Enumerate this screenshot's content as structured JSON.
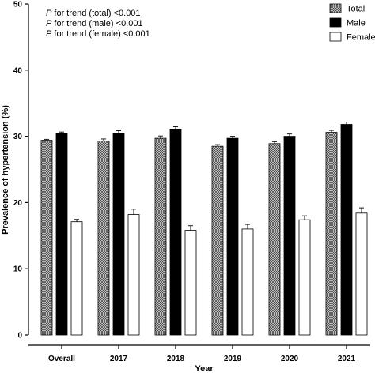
{
  "chart_data": {
    "type": "bar",
    "title": "",
    "xlabel": "Year",
    "ylabel": "Prevalence of hypertension (%)",
    "ylim": [
      0,
      50
    ],
    "yticks": [
      "0",
      "10",
      "20",
      "30",
      "40",
      "50"
    ],
    "categories": [
      "Overall",
      "2017",
      "2018",
      "2019",
      "2020",
      "2021"
    ],
    "series": [
      {
        "name": "Total",
        "values": [
          29.4,
          29.3,
          29.7,
          28.5,
          28.9,
          30.6
        ],
        "errors": [
          0.15,
          0.3,
          0.35,
          0.25,
          0.3,
          0.3
        ],
        "fill": "hatched"
      },
      {
        "name": "Male",
        "values": [
          30.5,
          30.5,
          31.1,
          29.7,
          30.0,
          31.8
        ],
        "errors": [
          0.15,
          0.35,
          0.35,
          0.3,
          0.35,
          0.35
        ],
        "fill": "#000000"
      },
      {
        "name": "Female",
        "values": [
          17.1,
          18.2,
          15.8,
          16.0,
          17.4,
          18.4
        ],
        "errors": [
          0.35,
          0.8,
          0.7,
          0.7,
          0.6,
          0.8
        ],
        "fill": "#ffffff"
      }
    ],
    "annotations": [
      {
        "italic": "P",
        "text": " for trend (total) <0.001"
      },
      {
        "italic": "P",
        "text": " for trend (male) <0.001"
      },
      {
        "italic": "P",
        "text": " for trend (female) <0.001"
      }
    ],
    "legend_position": "top-right",
    "grid": false
  }
}
